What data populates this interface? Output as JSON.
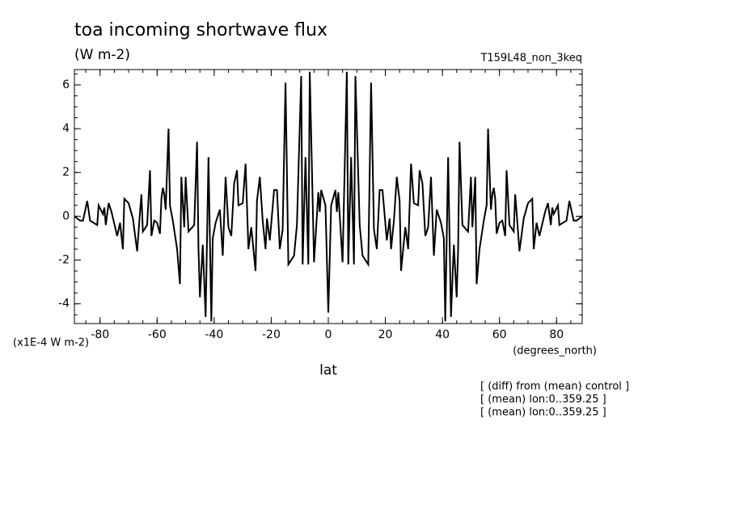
{
  "chart_data": {
    "type": "line",
    "title": "toa incoming shortwave flux",
    "subtitle": "(W m-2)",
    "run_label": "T159L48_non_3keq",
    "y_axis_label": "(x1E-4 W m-2)",
    "x_units": "(degrees_north)",
    "x_axis_label": "lat",
    "notes": [
      "[ (diff) from (mean) control ]",
      "[ (mean) lon:0..359.25 ]",
      "[ (mean) lon:0..359.25 ]"
    ],
    "xlim": [
      -89,
      89
    ],
    "ylim": [
      -4.9,
      6.7
    ],
    "xticks": [
      -80,
      -60,
      -40,
      -20,
      0,
      20,
      40,
      60,
      80
    ],
    "yticks": [
      -4,
      -2,
      0,
      2,
      4,
      6
    ],
    "color": "#000000",
    "x": [
      -89,
      -87,
      -86,
      -84.5,
      -83.5,
      -81,
      -80.5,
      -79,
      -78.5,
      -78,
      -77,
      -76,
      -74,
      -73,
      -72,
      -71.5,
      -70,
      -68.5,
      -67,
      -66,
      -65.5,
      -65,
      -63.5,
      -62.5,
      -62,
      -61,
      -60,
      -59,
      -58.5,
      -58,
      -57.5,
      -57,
      -56,
      -55.5,
      -54.5,
      -53,
      -52,
      -51.5,
      -50.5,
      -50,
      -49,
      -47,
      -46,
      -45.5,
      -45,
      -44,
      -43,
      -42,
      -41,
      -40.5,
      -39.5,
      -38,
      -37,
      -36,
      -35,
      -34,
      -33,
      -32,
      -31.5,
      -30,
      -29,
      -28,
      -27,
      -25.5,
      -25,
      -24,
      -23,
      -22,
      -21.5,
      -20.5,
      -19,
      -18,
      -17,
      -16,
      -15,
      -14,
      -12,
      -11,
      -9.5,
      -9,
      -8,
      -7,
      -6.5,
      -5,
      -3.5,
      -3,
      -2.5,
      -1,
      0,
      1,
      2.5,
      3,
      3.5,
      5,
      6.5,
      7,
      8,
      9,
      9.5,
      11,
      12,
      14,
      15,
      16,
      17,
      18,
      19,
      20.5,
      21.5,
      22,
      23,
      24,
      25,
      25.5,
      27,
      28,
      29,
      30,
      31.5,
      32,
      33,
      34,
      35,
      36,
      37,
      38,
      39.5,
      40.5,
      41,
      42,
      43,
      44,
      45,
      45.5,
      46,
      47,
      49,
      50,
      50.5,
      51.5,
      52,
      53,
      54.5,
      55.5,
      56,
      57,
      57.5,
      58,
      58.5,
      59,
      60,
      61,
      62,
      62.5,
      63.5,
      65,
      65.5,
      66,
      67,
      68.5,
      70,
      71.5,
      72,
      73,
      74,
      76,
      77,
      78,
      78.5,
      79,
      80.5,
      81,
      83.5,
      84.5,
      86,
      87,
      89
    ],
    "values": [
      0,
      -0.2,
      -0.2,
      0.7,
      -0.2,
      -0.4,
      0.5,
      0.1,
      0.4,
      -0.4,
      0.6,
      0.2,
      -0.9,
      -0.3,
      -1.5,
      0.8,
      0.6,
      -0.1,
      -1.6,
      0.2,
      1.0,
      -0.7,
      -0.4,
      2.1,
      -0.9,
      -0.2,
      -0.3,
      -0.8,
      0.8,
      1.3,
      1.0,
      0.3,
      4.0,
      0.5,
      -0.2,
      -1.5,
      -3.1,
      1.8,
      -0.5,
      1.8,
      -0.7,
      -0.4,
      3.4,
      -1.5,
      -3.7,
      -1.3,
      -4.6,
      2.7,
      -4.8,
      -1.0,
      -0.3,
      0.3,
      -1.8,
      1.8,
      -0.5,
      -0.9,
      1.5,
      2.1,
      0.5,
      0.6,
      2.4,
      -1.5,
      -0.5,
      -2.5,
      0.7,
      1.8,
      -0.2,
      -1.5,
      -0.1,
      -1.1,
      1.2,
      1.2,
      -1.5,
      -0.6,
      6.1,
      -2.2,
      -1.8,
      -0.4,
      6.4,
      -2.2,
      2.7,
      -2.2,
      6.6,
      -2.1,
      1.1,
      0.2,
      1.2,
      0.5,
      -4.4,
      0.5,
      1.2,
      0.2,
      1.1,
      -2.1,
      6.6,
      -2.2,
      2.7,
      -2.2,
      6.4,
      -0.4,
      -1.8,
      -2.2,
      6.1,
      -0.6,
      -1.5,
      1.2,
      1.2,
      -1.1,
      -0.1,
      -1.5,
      -0.2,
      1.8,
      0.7,
      -2.5,
      -0.5,
      -1.5,
      2.4,
      0.6,
      0.5,
      2.1,
      1.5,
      -0.9,
      -0.5,
      1.8,
      -1.8,
      0.3,
      -0.3,
      -1.0,
      -4.8,
      2.7,
      -4.6,
      -1.3,
      -3.7,
      -1.5,
      3.4,
      -0.4,
      -0.7,
      1.8,
      -0.5,
      1.8,
      -3.1,
      -1.5,
      -0.2,
      0.5,
      4.0,
      0.3,
      1.0,
      1.3,
      0.8,
      -0.8,
      -0.3,
      -0.2,
      -0.9,
      2.1,
      -0.4,
      -0.7,
      1.0,
      0.2,
      -1.6,
      -0.1,
      0.6,
      0.8,
      -1.5,
      -0.3,
      -0.9,
      0.2,
      0.6,
      -0.4,
      0.4,
      0.1,
      0.5,
      -0.4,
      -0.2,
      0.7,
      -0.2,
      -0.2,
      0
    ]
  }
}
